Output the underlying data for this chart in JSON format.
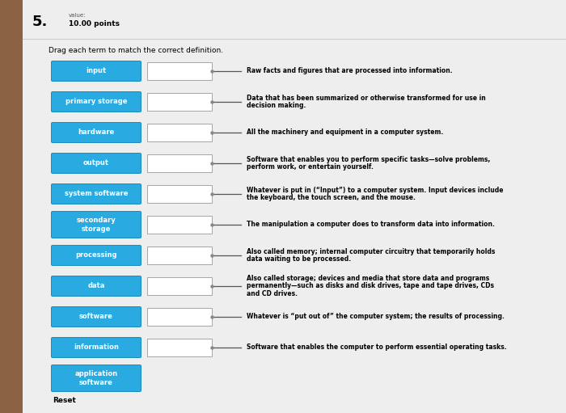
{
  "title_number": "5.",
  "value_label": "value:",
  "points_label": "10.00 points",
  "instruction": "Drag each term to match the correct definition.",
  "reset_label": "Reset",
  "bg_color": "#e8e8e8",
  "content_bg": "#ebebeb",
  "left_strip_color": "#8B6344",
  "term_bg": "#29abe2",
  "term_text_color": "#ffffff",
  "box_bg": "#ffffff",
  "box_border": "#999999",
  "terms": [
    "input",
    "primary storage",
    "hardware",
    "output",
    "system software",
    "secondary\nstorage",
    "processing",
    "data",
    "software",
    "information",
    "application\nsoftware"
  ],
  "definitions": [
    "Raw facts and figures that are processed into information.",
    "Data that has been summarized or otherwise transformed for use in\ndecision making.",
    "All the machinery and equipment in a computer system.",
    "Software that enables you to perform specific tasks—solve problems,\nperform work, or entertain yourself.",
    "Whatever is put in (“Input”) to a computer system. Input devices include\nthe keyboard, the touch screen, and the mouse.",
    "The manipulation a computer does to transform data into information.",
    "Also called memory; internal computer circuitry that temporarily holds\ndata waiting to be processed.",
    "Also called storage; devices and media that store data and programs\npermanently—such as disks and disk drives, tape and tape drives, CDs\nand CD drives.",
    "Whatever is “put out of” the computer system; the results of processing.",
    "Software that enables the computer to perform essential operating tasks.",
    ""
  ],
  "fig_width": 7.0,
  "fig_height": 5.11,
  "dpi": 100
}
